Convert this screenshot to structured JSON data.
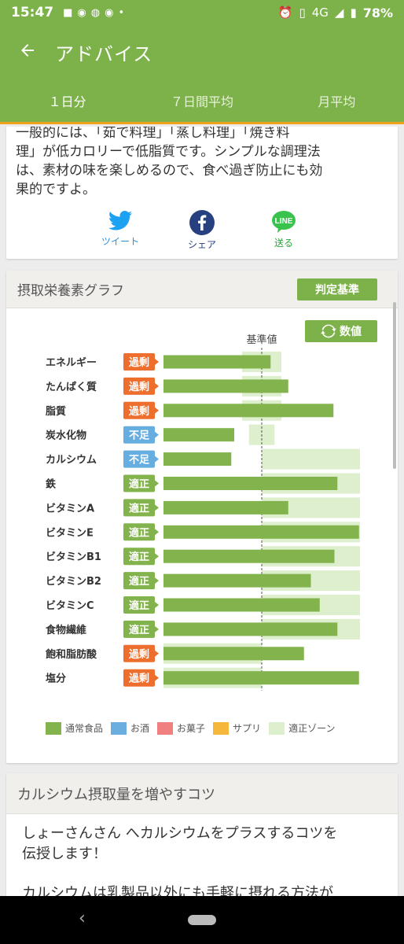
{
  "status_bar": {
    "time": "15:47",
    "network": "4G",
    "battery": "78%"
  },
  "app_bar": {
    "title": "アドバイス"
  },
  "tabs": [
    {
      "label": "１日分",
      "active": true
    },
    {
      "label": "７日間平均",
      "active": false
    },
    {
      "label": "月平均",
      "active": false
    }
  ],
  "advice": {
    "lines": [
      "一般的には、「茹で料理」「蒸し料理」「焼き料",
      "理」が低カロリーで低脂質です。シンプルな調理法",
      "は、素材の味を楽しめるので、食べ過ぎ防止にも効",
      "果的ですよ。"
    ]
  },
  "share": {
    "tweet": "ツイート",
    "share": "シェア",
    "send": "送る",
    "line_logo": "LINE"
  },
  "nutrient_card": {
    "title": "摂取栄養素グラフ",
    "criteria_button": "判定基準",
    "value_button": "数値"
  },
  "chart_data": {
    "type": "bar",
    "reference_label": "基準値",
    "categories": [
      "エネルギー",
      "たんぱく質",
      "脂質",
      "炭水化物",
      "カルシウム",
      "鉄",
      "ビタミンA",
      "ビタミンE",
      "ビタミンB1",
      "ビタミンB2",
      "ビタミンC",
      "食物繊維",
      "飽和脂肪酸",
      "塩分"
    ],
    "status": [
      "過剰",
      "過剰",
      "過剰",
      "不足",
      "不足",
      "適正",
      "適正",
      "適正",
      "適正",
      "適正",
      "適正",
      "適正",
      "過剰",
      "過剰"
    ],
    "normal_food": [
      1.09,
      1.27,
      1.73,
      0.72,
      0.69,
      1.77,
      1.27,
      1.99,
      1.74,
      1.5,
      1.59,
      1.77,
      1.43,
      1.99
    ],
    "proper_zone": [
      [
        0.8,
        1.2
      ],
      [
        0.8,
        1.2
      ],
      [
        0.8,
        1.2
      ],
      [
        0.87,
        1.13
      ],
      [
        1.0,
        2.0
      ],
      [
        1.0,
        2.0
      ],
      [
        1.0,
        2.0
      ],
      [
        1.0,
        2.0
      ],
      [
        1.0,
        2.0
      ],
      [
        1.0,
        2.0
      ],
      [
        1.0,
        2.0
      ],
      [
        1.0,
        2.0
      ],
      [
        0,
        1.0
      ],
      [
        0,
        1.0
      ]
    ],
    "legend": [
      "通常食品",
      "お酒",
      "お菓子",
      "サプリ",
      "適正ゾーン"
    ],
    "colors": {
      "normal_food": "#82b34c",
      "alcohol": "#6aaee0",
      "sweets": "#f08080",
      "supplement": "#f5b83d",
      "proper_zone": "#ddefcd",
      "excess": "#ee6f2d",
      "deficient": "#66aee0",
      "proper": "#82b34c"
    }
  },
  "calcium_tips": {
    "title": "カルシウム摂取量を増やすコツ",
    "line1": "しょーさんさん へカルシウムをプラスするコツを",
    "line2": "伝授します！",
    "line3": "カルシウムは乳製品以外にも手軽に摂れる方法が"
  }
}
